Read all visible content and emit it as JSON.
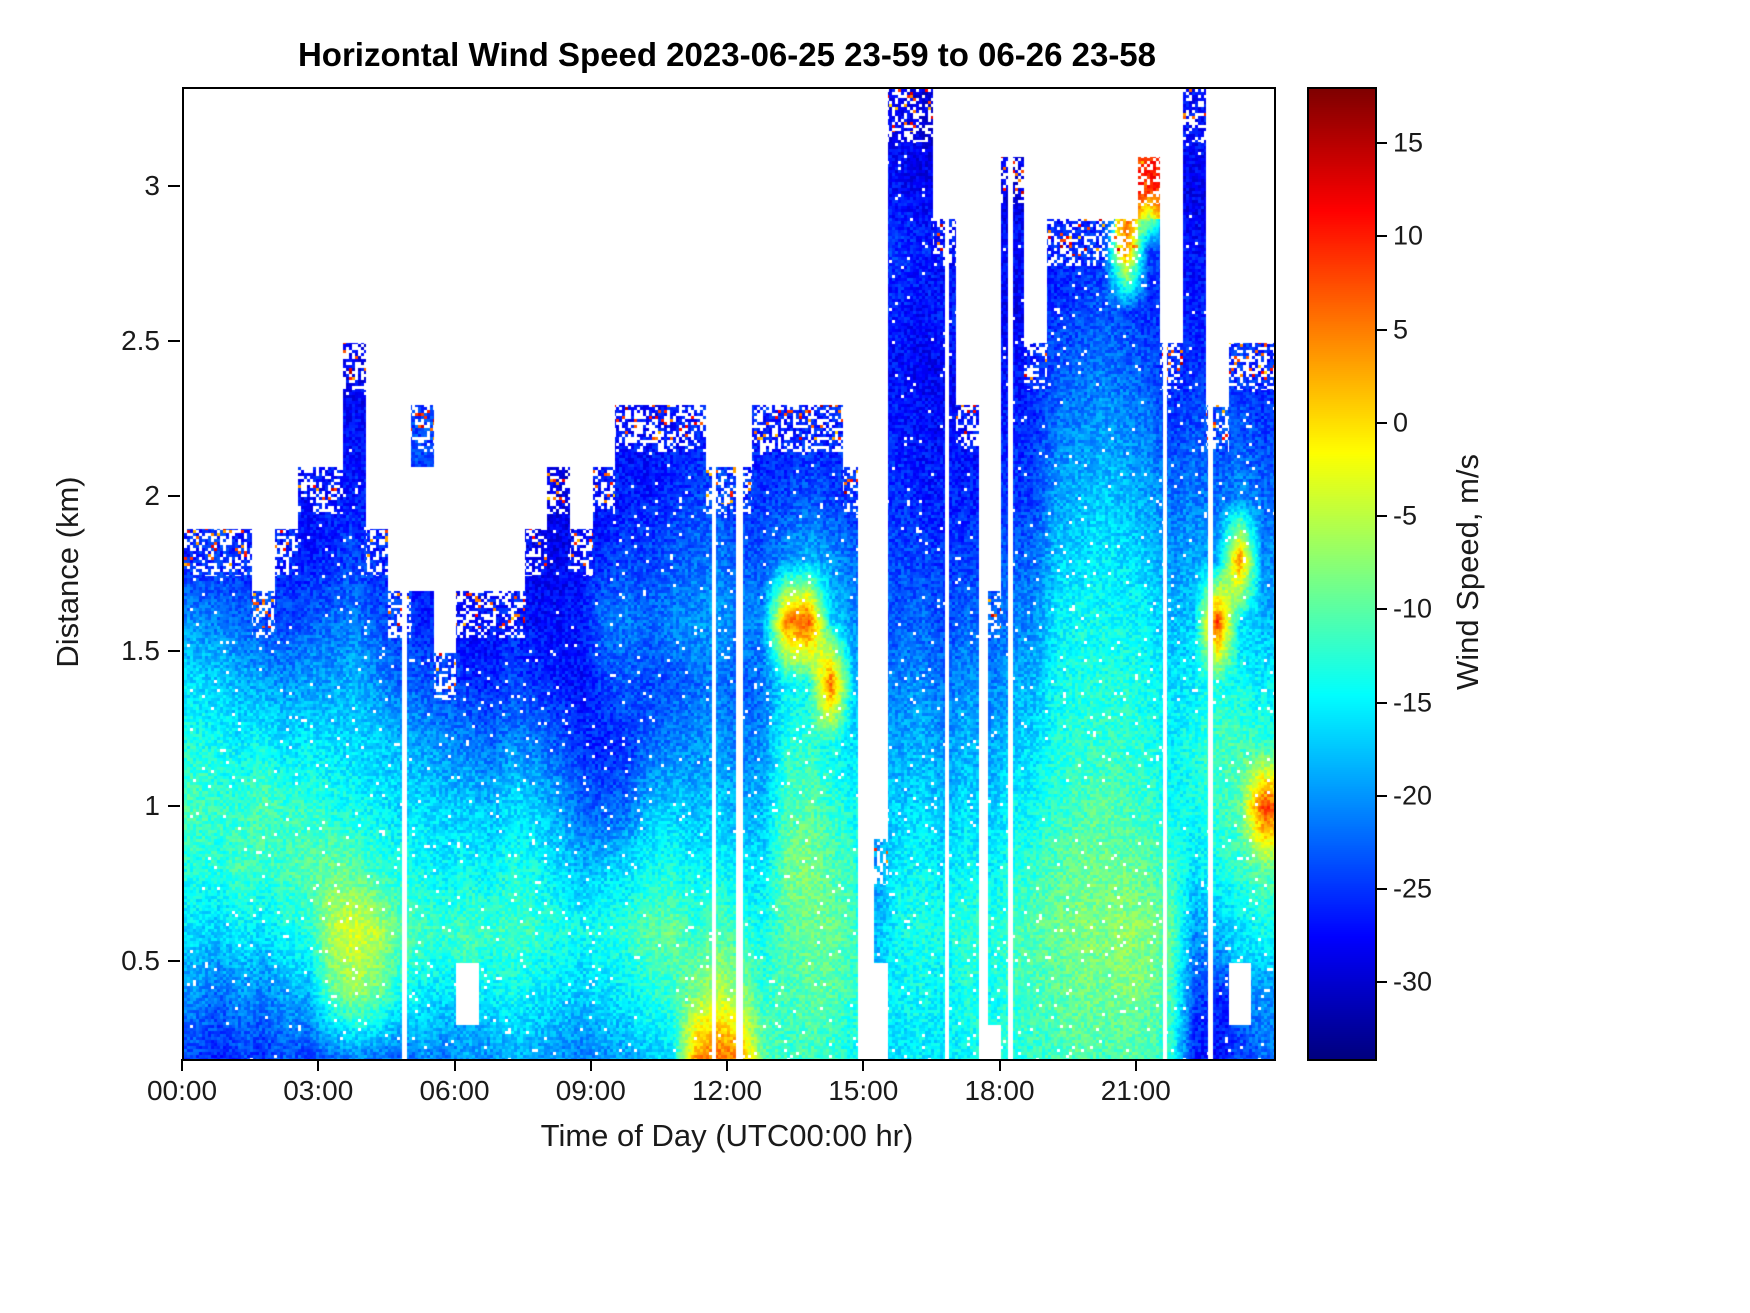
{
  "chart_data": {
    "type": "heatmap",
    "title": "Horizontal Wind Speed 2023-06-25 23-59 to 06-26 23-58",
    "xlabel": "Time of Day (UTC00:00 hr)",
    "ylabel": "Distance (km)",
    "colorbar_label": "Wind Speed, m/s",
    "colormap": "jet",
    "units": "m/s",
    "clim": [
      -34,
      18
    ],
    "x_range_hours": [
      0,
      24
    ],
    "y_range_km": [
      0.19,
      3.32
    ],
    "x_tick_values": [
      0,
      3,
      6,
      9,
      12,
      15,
      18,
      21
    ],
    "x_tick_labels": [
      "00:00",
      "03:00",
      "06:00",
      "09:00",
      "12:00",
      "15:00",
      "18:00",
      "21:00"
    ],
    "y_tick_values": [
      0.5,
      1,
      1.5,
      2,
      2.5,
      3
    ],
    "y_tick_labels": [
      "0.5",
      "1",
      "1.5",
      "2",
      "2.5",
      "3"
    ],
    "colorbar_tick_values": [
      15,
      10,
      5,
      0,
      -5,
      -10,
      -15,
      -20,
      -25,
      -30
    ],
    "colorbar_tick_labels": [
      "15",
      "10",
      "5",
      "0",
      "-5",
      "-10",
      "-15",
      "-20",
      "-25",
      "-30"
    ],
    "missing_data_stripes_hours": [
      [
        4.8,
        4.9
      ],
      [
        11.62,
        11.72
      ],
      [
        12.15,
        12.3
      ],
      [
        14.85,
        15.2
      ],
      [
        16.75,
        16.85
      ],
      [
        17.5,
        17.7
      ],
      [
        18.15,
        18.25
      ],
      [
        21.55,
        21.65
      ],
      [
        22.55,
        22.65
      ]
    ],
    "grid": {
      "t_start_hours": 0.25,
      "t_step_hours": 0.5,
      "n_cols": 48,
      "y_start_km": 0.2,
      "y_step_km": 0.2,
      "n_rows": 16,
      "value_units": "m/s",
      "columns": [
        [
          -24,
          -20,
          -16,
          -13,
          -11,
          -13,
          -16,
          -20,
          -26,
          null,
          null,
          null,
          null,
          null,
          null,
          null
        ],
        [
          -26,
          -22,
          -17,
          -13,
          -12,
          -14,
          -17,
          -21,
          -25,
          null,
          null,
          null,
          null,
          null,
          null,
          null
        ],
        [
          -24,
          -20,
          -15,
          -11,
          -12,
          -15,
          -18,
          -22,
          -26,
          null,
          null,
          null,
          null,
          null,
          null,
          null
        ],
        [
          -25,
          -21,
          -16,
          -12,
          -10,
          -14,
          -19,
          -24,
          null,
          null,
          null,
          null,
          null,
          null,
          null,
          null
        ],
        [
          -23,
          -19,
          -14,
          -11,
          -12,
          -16,
          -20,
          -24,
          -26,
          null,
          null,
          null,
          null,
          null,
          null,
          null
        ],
        [
          -24,
          -18,
          -13,
          -10,
          -12,
          -15,
          -19,
          -23,
          -26,
          -27,
          null,
          null,
          null,
          null,
          null,
          null
        ],
        [
          -22,
          -10,
          -5,
          -9,
          -13,
          -16,
          -19,
          -22,
          -25,
          -27,
          null,
          null,
          null,
          null,
          null,
          null
        ],
        [
          -20,
          -7,
          -3,
          -10,
          -14,
          -16,
          -18,
          -21,
          -24,
          -26,
          -27,
          -28,
          null,
          null,
          null,
          null
        ],
        [
          -21,
          -9,
          -5,
          -12,
          -15,
          -17,
          -20,
          -23,
          -26,
          null,
          null,
          null,
          null,
          null,
          null,
          null
        ],
        [
          -22,
          -14,
          -10,
          -13,
          -16,
          -18,
          -22,
          -25,
          null,
          null,
          null,
          null,
          null,
          null,
          null,
          null
        ],
        [
          -20,
          -15,
          -11,
          -14,
          -16,
          -19,
          -23,
          -26,
          null,
          null,
          -24,
          null,
          null,
          null,
          null,
          null
        ],
        [
          -21,
          -16,
          -12,
          -15,
          -17,
          -20,
          -24,
          null,
          null,
          null,
          null,
          null,
          null,
          null,
          null,
          null
        ],
        [
          -19,
          null,
          -11,
          -14,
          -17,
          -21,
          -25,
          -27,
          null,
          null,
          null,
          null,
          null,
          null,
          null,
          null
        ],
        [
          -20,
          -15,
          -12,
          -15,
          -18,
          -22,
          -26,
          -27,
          null,
          null,
          null,
          null,
          null,
          null,
          null,
          null
        ],
        [
          -18,
          -14,
          -11,
          -13,
          -16,
          -20,
          -24,
          -26,
          null,
          null,
          null,
          null,
          null,
          null,
          null,
          null
        ],
        [
          -19,
          -15,
          -12,
          -14,
          -17,
          -21,
          -25,
          -27,
          -28,
          null,
          null,
          null,
          null,
          null,
          null,
          null
        ],
        [
          -20,
          -16,
          -13,
          -16,
          -19,
          -23,
          -26,
          -27,
          -28,
          -29,
          null,
          null,
          null,
          null,
          null,
          null
        ],
        [
          -21,
          -17,
          -14,
          -18,
          -22,
          -25,
          -27,
          -26,
          -27,
          null,
          null,
          null,
          null,
          null,
          null,
          null
        ],
        [
          -20,
          -16,
          -13,
          -17,
          -23,
          -26,
          -24,
          -22,
          -25,
          -27,
          null,
          null,
          null,
          null,
          null,
          null
        ],
        [
          -19,
          -15,
          -12,
          -16,
          -22,
          -25,
          -23,
          -21,
          -24,
          -26,
          -27,
          null,
          null,
          null,
          null,
          null
        ],
        [
          -17,
          -13,
          -10,
          -14,
          -18,
          -22,
          -24,
          -22,
          -24,
          -26,
          -27,
          null,
          null,
          null,
          null,
          null
        ],
        [
          -16,
          -12,
          -9,
          -13,
          -17,
          -21,
          -23,
          -21,
          -23,
          -25,
          -27,
          null,
          null,
          null,
          null,
          null
        ],
        [
          3,
          -8,
          -12,
          -15,
          -18,
          -20,
          -22,
          -20,
          -22,
          -24,
          -26,
          null,
          null,
          null,
          null,
          null
        ],
        [
          6,
          -5,
          -10,
          -14,
          -17,
          -19,
          -21,
          -19,
          -21,
          -24,
          null,
          null,
          null,
          null,
          null,
          null
        ],
        [
          4,
          -7,
          -12,
          -16,
          -19,
          -21,
          -23,
          -21,
          -23,
          -25,
          null,
          null,
          null,
          null,
          null,
          null
        ],
        [
          -10,
          -12,
          -14,
          -16,
          -18,
          -20,
          -22,
          -20,
          -23,
          -25,
          -26,
          null,
          null,
          null,
          null,
          null
        ],
        [
          -12,
          -11,
          -10,
          -9,
          -11,
          -13,
          -15,
          5,
          -20,
          -24,
          -26,
          null,
          null,
          null,
          null,
          null
        ],
        [
          -11,
          -10,
          -9,
          -8,
          -10,
          -12,
          -14,
          8,
          -18,
          -23,
          -26,
          null,
          null,
          null,
          null,
          null
        ],
        [
          -12,
          -10,
          -9,
          -10,
          -12,
          -14,
          7,
          -16,
          -20,
          -24,
          -26,
          null,
          null,
          null,
          null,
          null
        ],
        [
          -14,
          -12,
          -11,
          -12,
          -14,
          -16,
          -18,
          -20,
          -22,
          -25,
          null,
          null,
          null,
          null,
          null,
          null
        ],
        [
          null,
          null,
          -18,
          -20,
          null,
          null,
          null,
          null,
          null,
          null,
          null,
          null,
          null,
          null,
          null,
          null
        ],
        [
          -16,
          -15,
          -14,
          -15,
          -17,
          -19,
          -21,
          -23,
          -24,
          -25,
          -26,
          -27,
          -26,
          -25,
          -27,
          -28
        ],
        [
          -15,
          -14,
          -13,
          -14,
          -16,
          -18,
          -20,
          -22,
          -24,
          -26,
          -27,
          -28,
          -27,
          -26,
          -28,
          -29
        ],
        [
          -16,
          -15,
          -14,
          -16,
          -18,
          -20,
          -22,
          -24,
          -25,
          -26,
          -27,
          -28,
          -26,
          -27,
          null,
          null
        ],
        [
          -14,
          -13,
          -12,
          -14,
          -16,
          -18,
          -20,
          -22,
          -24,
          -26,
          -27,
          null,
          null,
          null,
          null,
          null
        ],
        [
          null,
          -14,
          -13,
          -15,
          -17,
          -19,
          -21,
          -23,
          null,
          null,
          null,
          null,
          null,
          null,
          null,
          null
        ],
        [
          -13,
          -12,
          -11,
          -13,
          -15,
          -17,
          -19,
          -21,
          -23,
          -25,
          -26,
          -27,
          -28,
          -27,
          -29,
          null
        ],
        [
          -12,
          -11,
          -10,
          -12,
          -14,
          -16,
          -18,
          -20,
          -22,
          -24,
          -25,
          -26,
          null,
          null,
          null,
          null
        ],
        [
          -11,
          -10,
          -9,
          -10,
          -12,
          -13,
          -14,
          -15,
          -17,
          -19,
          -21,
          -23,
          -25,
          -26,
          null,
          null
        ],
        [
          -10,
          -9,
          -8,
          -9,
          -11,
          -12,
          -13,
          -14,
          -16,
          -18,
          -20,
          -22,
          -24,
          -26,
          null,
          null
        ],
        [
          -11,
          -9,
          -8,
          -9,
          -10,
          -12,
          -13,
          -14,
          -15,
          -17,
          -19,
          -21,
          -23,
          -25,
          null,
          null
        ],
        [
          -10,
          -8,
          -7,
          -9,
          -11,
          -12,
          -13,
          -14,
          -16,
          -18,
          -20,
          -22,
          -24,
          6,
          null,
          null
        ],
        [
          -11,
          -9,
          -8,
          -10,
          -12,
          -13,
          -14,
          -15,
          -17,
          -19,
          -21,
          -23,
          -25,
          -24,
          10,
          null
        ],
        [
          -13,
          -11,
          -10,
          -12,
          -14,
          -15,
          -16,
          -18,
          -20,
          -22,
          -24,
          -26,
          null,
          null,
          null,
          null
        ],
        [
          -26,
          -24,
          -20,
          -16,
          -14,
          -13,
          -15,
          -17,
          -19,
          -21,
          -23,
          -25,
          -26,
          -27,
          -28,
          -27
        ],
        [
          -27,
          -25,
          -18,
          -14,
          -12,
          -11,
          -13,
          9,
          -19,
          -22,
          -24,
          null,
          null,
          null,
          null,
          null
        ],
        [
          -24,
          null,
          -16,
          -12,
          -10,
          -11,
          -14,
          -16,
          5,
          -20,
          -23,
          -25,
          null,
          null,
          null,
          null
        ],
        [
          -22,
          -20,
          -14,
          -10,
          8,
          -12,
          -15,
          -18,
          -20,
          -22,
          -24,
          -26,
          null,
          null,
          null,
          null
        ]
      ]
    }
  }
}
